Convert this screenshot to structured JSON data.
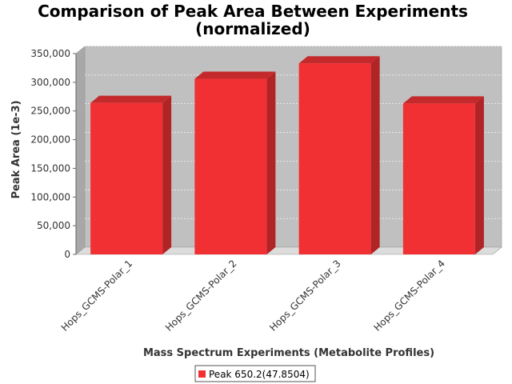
{
  "chart_data": {
    "type": "bar",
    "title": "Comparison of Peak Area Between Experiments",
    "subtitle": "(normalized)",
    "xlabel": "Mass Spectrum Experiments (Metabolite Profiles)",
    "ylabel": "Peak Area (1e-3)",
    "categories": [
      "Hops_GCMS-Polar_1",
      "Hops_GCMS-Polar_2",
      "Hops_GCMS-Polar_3",
      "Hops_GCMS-Polar_4"
    ],
    "series": [
      {
        "name": "Peak 650.2(47.8504)",
        "values": [
          264000,
          306000,
          333000,
          263000
        ],
        "color": "#f03033"
      }
    ],
    "ylim": [
      0,
      350000
    ],
    "yticks": [
      0,
      50000,
      100000,
      150000,
      200000,
      250000,
      300000,
      350000
    ],
    "ytick_labels": [
      "0",
      "50,000",
      "100,000",
      "150,000",
      "200,000",
      "250,000",
      "300,000",
      "350,000"
    ],
    "grid": true,
    "legend": "bottom",
    "colors": {
      "plot_background": "#c0c0c0",
      "plot_floor": "#dcdcdc",
      "bar_front": "#f03033",
      "bar_side": "#b02426",
      "bar_top": "#c42a2c"
    }
  }
}
